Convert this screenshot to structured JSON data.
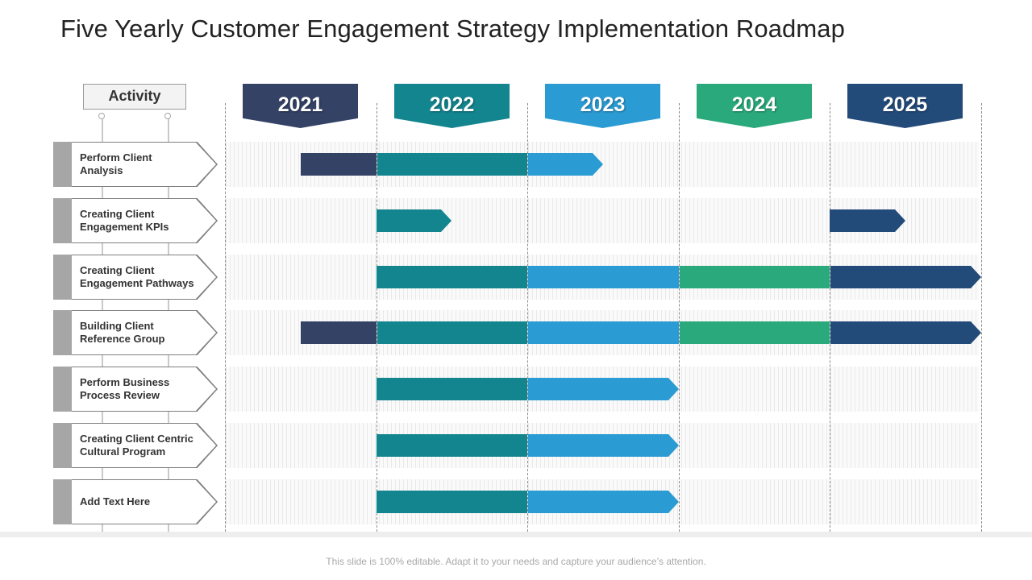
{
  "title": "Five Yearly Customer Engagement Strategy Implementation Roadmap",
  "activity_header": "Activity",
  "years": [
    {
      "label": "2021",
      "color": "#344266"
    },
    {
      "label": "2022",
      "color": "#13858f"
    },
    {
      "label": "2023",
      "color": "#2b9bd3"
    },
    {
      "label": "2024",
      "color": "#2aa97c"
    },
    {
      "label": "2025",
      "color": "#234b7a"
    }
  ],
  "activities": [
    {
      "label": "Perform Client Analysis",
      "bars": [
        {
          "start": 0.5,
          "end": 2.5
        }
      ]
    },
    {
      "label": "Creating Client Engagement KPIs",
      "bars": [
        {
          "start": 1.0,
          "end": 1.5
        },
        {
          "start": 4.0,
          "end": 4.5
        }
      ]
    },
    {
      "label": "Creating Client Engagement Pathways",
      "bars": [
        {
          "start": 1.0,
          "end": 5.0
        }
      ]
    },
    {
      "label": "Building Client Reference Group",
      "bars": [
        {
          "start": 0.5,
          "end": 5.0
        }
      ]
    },
    {
      "label": "Perform Business Process Review",
      "bars": [
        {
          "start": 1.0,
          "end": 3.0
        }
      ]
    },
    {
      "label": "Creating Client Centric Cultural Program",
      "bars": [
        {
          "start": 1.0,
          "end": 3.0
        }
      ]
    },
    {
      "label": "Add Text Here",
      "bars": [
        {
          "start": 1.0,
          "end": 3.0
        }
      ]
    }
  ],
  "footer": "This slide is 100% editable. Adapt it to your needs and capture your audience’s attention."
}
